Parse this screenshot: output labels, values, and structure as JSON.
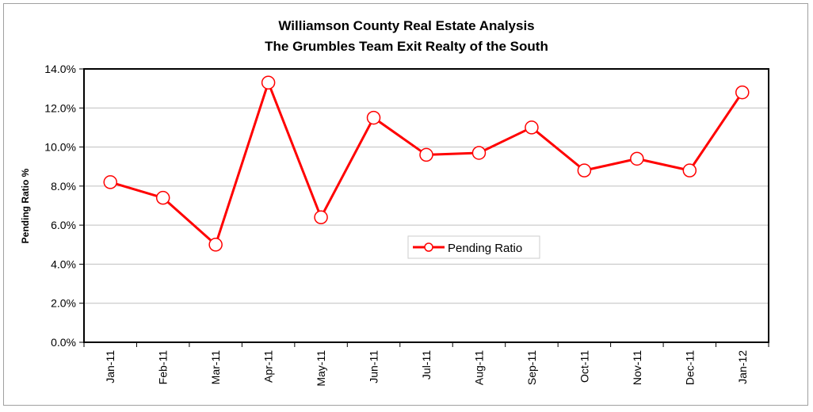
{
  "chart_data": {
    "type": "line",
    "title_line1": "Williamson County Real Estate Analysis",
    "title_line2": "The Grumbles Team Exit Realty of the South",
    "xlabel": "",
    "ylabel": "Pending Ratio %",
    "ylim": [
      0,
      14
    ],
    "ytick_step": 2,
    "grid": true,
    "legend_position": "center-right",
    "categories": [
      "Jan-11",
      "Feb-11",
      "Mar-11",
      "Apr-11",
      "May-11",
      "Jun-11",
      "Jul-11",
      "Aug-11",
      "Sep-11",
      "Oct-11",
      "Nov-11",
      "Dec-11",
      "Jan-12"
    ],
    "series": [
      {
        "name": "Pending Ratio",
        "color": "#ff0000",
        "values": [
          8.2,
          7.4,
          5.0,
          13.3,
          6.4,
          11.5,
          9.6,
          9.7,
          11.0,
          8.8,
          9.4,
          8.8,
          12.8
        ]
      }
    ]
  }
}
